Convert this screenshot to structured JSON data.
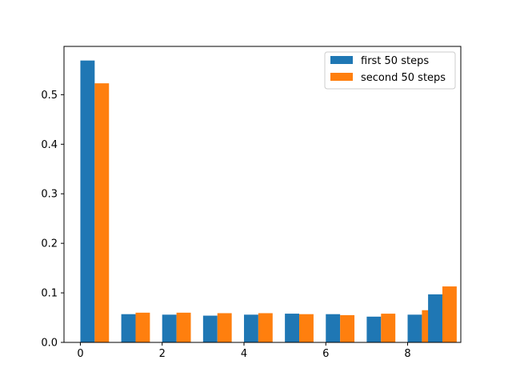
{
  "chart_data": {
    "type": "bar",
    "categories": [
      0,
      1,
      2,
      3,
      4,
      5,
      6,
      7,
      8
    ],
    "series": [
      {
        "name": "first 50 steps",
        "color": "#1f77b4",
        "values": [
          0.569,
          0.057,
          0.056,
          0.054,
          0.056,
          0.058,
          0.057,
          0.052,
          0.056
        ]
      },
      {
        "name": "second 50 steps",
        "color": "#ff7f0e",
        "values": [
          0.523,
          0.06,
          0.06,
          0.059,
          0.059,
          0.057,
          0.055,
          0.058,
          0.065
        ]
      }
    ],
    "extra_bars": {
      "x": 8.5,
      "values": [
        0.097,
        0.113
      ]
    },
    "xlim": [
      -0.4,
      9.3
    ],
    "ylim": [
      0,
      0.5975
    ],
    "xticks": [
      0,
      2,
      4,
      6,
      8
    ],
    "yticks": [
      0.0,
      0.1,
      0.2,
      0.3,
      0.4,
      0.5
    ],
    "ytick_labels": [
      "0.0",
      "0.1",
      "0.2",
      "0.3",
      "0.4",
      "0.5"
    ],
    "grid": false,
    "legend_position": "top-right",
    "title": "",
    "xlabel": "",
    "ylabel": ""
  }
}
